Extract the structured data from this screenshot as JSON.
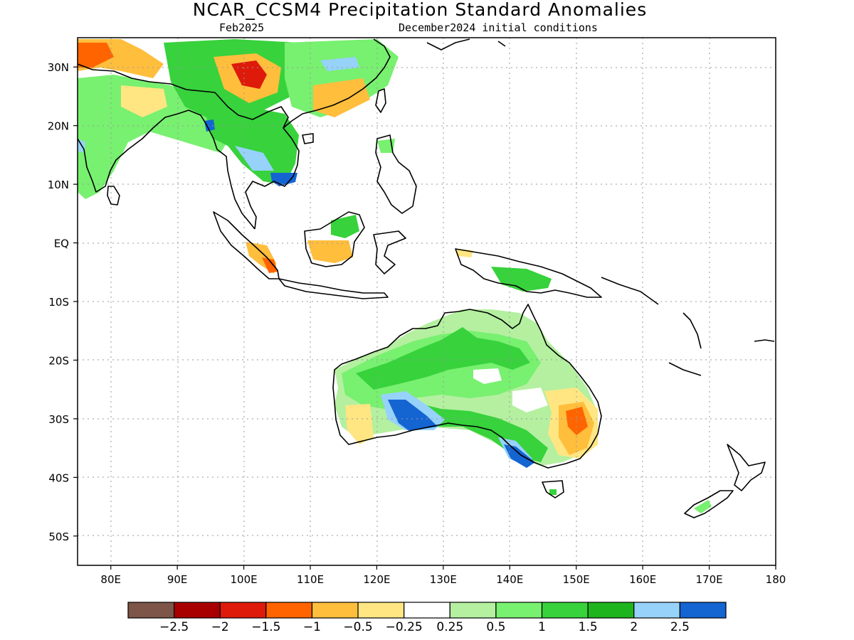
{
  "title": "NCAR_CCSM4 Precipitation Standard Anomalies",
  "subtitle_left": "Feb2025",
  "subtitle_right": "December2024 initial conditions",
  "map": {
    "lon_range": [
      75,
      180
    ],
    "lat_range": [
      -55,
      35
    ],
    "lon_ticks": [
      {
        "value": 80,
        "label": "80E"
      },
      {
        "value": 90,
        "label": "90E"
      },
      {
        "value": 100,
        "label": "100E"
      },
      {
        "value": 110,
        "label": "110E"
      },
      {
        "value": 120,
        "label": "120E"
      },
      {
        "value": 130,
        "label": "130E"
      },
      {
        "value": 140,
        "label": "140E"
      },
      {
        "value": 150,
        "label": "150E"
      },
      {
        "value": 160,
        "label": "160E"
      },
      {
        "value": 170,
        "label": "170E"
      },
      {
        "value": 180,
        "label": "180"
      }
    ],
    "lat_ticks": [
      {
        "value": 30,
        "label": "30N"
      },
      {
        "value": 20,
        "label": "20N"
      },
      {
        "value": 10,
        "label": "10N"
      },
      {
        "value": 0,
        "label": "EQ"
      },
      {
        "value": -10,
        "label": "10S"
      },
      {
        "value": -20,
        "label": "20S"
      },
      {
        "value": -30,
        "label": "30S"
      },
      {
        "value": -40,
        "label": "40S"
      },
      {
        "value": -50,
        "label": "50S"
      }
    ]
  },
  "colorbar": {
    "colors": [
      "#7d5549",
      "#a80000",
      "#de1a0a",
      "#ff6400",
      "#ffbe3c",
      "#ffe682",
      "#ffffff",
      "#b4f0a0",
      "#78f070",
      "#37d23c",
      "#1eb41e",
      "#96d2fa",
      "#1464d2"
    ],
    "labels": [
      "-2.5",
      "-2",
      "-1.5",
      "-1",
      "-0.5",
      "-0.25",
      "0.25",
      "0.5",
      "1",
      "1.5",
      "2",
      "2.5"
    ]
  },
  "anomaly_fields": [
    {
      "region": "Australia (west-central interior)",
      "lon": [
        115,
        131
      ],
      "lat": [
        -32,
        -20
      ],
      "value": 1
    },
    {
      "region": "Australia (north-central)",
      "lon": [
        127,
        141
      ],
      "lat": [
        -25,
        -14
      ],
      "value": 1.5
    },
    {
      "region": "Australia (south, Great Australian Bight)",
      "lon": [
        123,
        130
      ],
      "lat": [
        -33,
        -28
      ],
      "value": 2.5
    },
    {
      "region": "Australia (south-east)",
      "lon": [
        139,
        143
      ],
      "lat": [
        -38,
        -34
      ],
      "value": 2.5
    },
    {
      "region": "Australia (east coast)",
      "lon": [
        148,
        152
      ],
      "lat": [
        -35,
        -28
      ],
      "value": -1
    },
    {
      "region": "Australia (south-west)",
      "lon": [
        116,
        121
      ],
      "lat": [
        -35,
        -30
      ],
      "value": -0.25
    },
    {
      "region": "China (south-west)",
      "lon": [
        101,
        105
      ],
      "lat": [
        26,
        31
      ],
      "value": -1.5
    },
    {
      "region": "China (south-east)",
      "lon": [
        108,
        120
      ],
      "lat": [
        23,
        35
      ],
      "value": 1
    },
    {
      "region": "Indochina",
      "lon": [
        99,
        108
      ],
      "lat": [
        10,
        23
      ],
      "value": 1.5
    },
    {
      "region": "India (north-east)",
      "lon": [
        75,
        92
      ],
      "lat": [
        12,
        31
      ],
      "value": 1
    },
    {
      "region": "Borneo (south)",
      "lon": [
        110,
        116
      ],
      "lat": [
        -3,
        0
      ],
      "value": -0.5
    },
    {
      "region": "Sumatra (south)",
      "lon": [
        101,
        106
      ],
      "lat": [
        -5,
        -1
      ],
      "value": -1
    },
    {
      "region": "New Guinea",
      "lon": [
        139,
        145
      ],
      "lat": [
        -8,
        -4
      ],
      "value": 1.5
    }
  ]
}
